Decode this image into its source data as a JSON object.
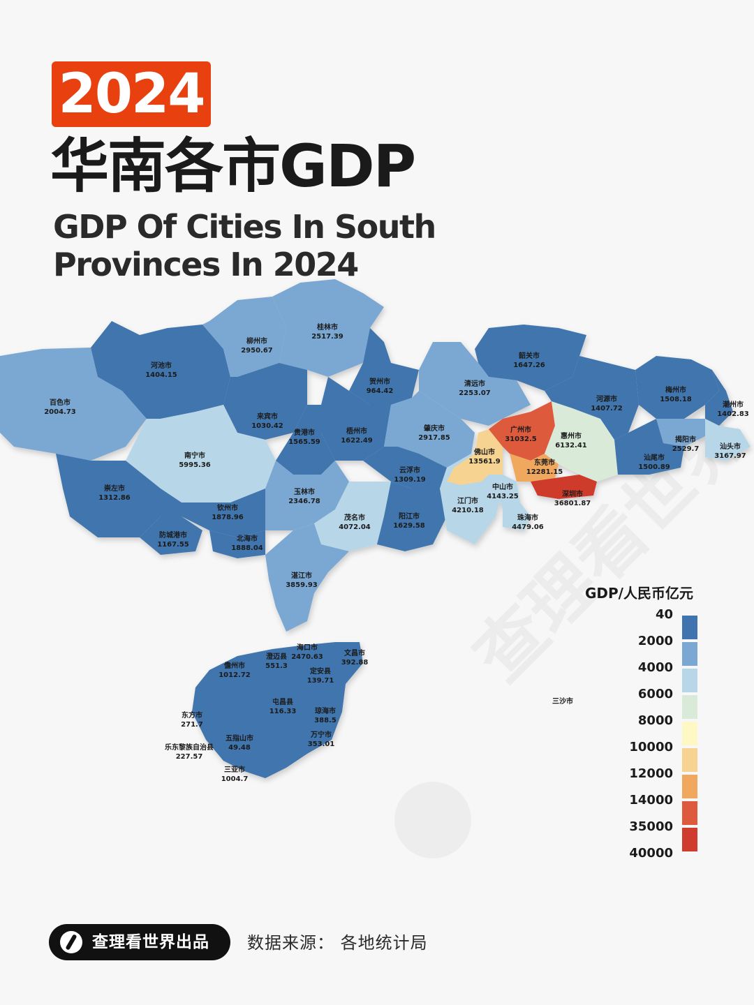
{
  "header": {
    "year": "2024",
    "title_cn": "华南各市GDP",
    "title_en_line1": "GDP Of Cities In South",
    "title_en_line2": "Provinces In 2024"
  },
  "legend": {
    "title": "GDP/人民币亿元",
    "items": [
      {
        "label": "40",
        "color": "#3f74ae"
      },
      {
        "label": "2000",
        "color": "#7aa8d3"
      },
      {
        "label": "4000",
        "color": "#b7d6e8"
      },
      {
        "label": "6000",
        "color": "#d9ead9"
      },
      {
        "label": "8000",
        "color": "#fdf8c4"
      },
      {
        "label": "10000",
        "color": "#f7d391"
      },
      {
        "label": "12000",
        "color": "#f0a85f"
      },
      {
        "label": "14000",
        "color": "#dd5a3c"
      },
      {
        "label": "35000",
        "color": "#cf3b2c"
      },
      {
        "label": "40000",
        "color": ""
      }
    ]
  },
  "map_cities": [
    {
      "name": "桂林市",
      "value": "2517.39"
    },
    {
      "name": "柳州市",
      "value": "2950.67"
    },
    {
      "name": "河池市",
      "value": "1404.15"
    },
    {
      "name": "百色市",
      "value": "2004.73"
    },
    {
      "name": "贺州市",
      "value": "964.42"
    },
    {
      "name": "来宾市",
      "value": "1030.42"
    },
    {
      "name": "贵港市",
      "value": "1565.59"
    },
    {
      "name": "梧州市",
      "value": "1622.49"
    },
    {
      "name": "南宁市",
      "value": "5995.36"
    },
    {
      "name": "崇左市",
      "value": "1312.86"
    },
    {
      "name": "玉林市",
      "value": "2346.78"
    },
    {
      "name": "钦州市",
      "value": "1878.96"
    },
    {
      "name": "防城港市",
      "value": "1167.55"
    },
    {
      "name": "北海市",
      "value": "1888.04"
    },
    {
      "name": "韶关市",
      "value": "1647.26"
    },
    {
      "name": "清远市",
      "value": "2253.07"
    },
    {
      "name": "肇庆市",
      "value": "2917.85"
    },
    {
      "name": "广州市",
      "value": "31032.5"
    },
    {
      "name": "佛山市",
      "value": "13561.9"
    },
    {
      "name": "云浮市",
      "value": "1309.19"
    },
    {
      "name": "河源市",
      "value": "1407.72"
    },
    {
      "name": "梅州市",
      "value": "1508.18"
    },
    {
      "name": "潮州市",
      "value": "1402.83"
    },
    {
      "name": "惠州市",
      "value": "6132.41"
    },
    {
      "name": "揭阳市",
      "value": "2529.7"
    },
    {
      "name": "汕头市",
      "value": "3167.97"
    },
    {
      "name": "汕尾市",
      "value": "1500.89"
    },
    {
      "name": "东莞市",
      "value": "12281.15"
    },
    {
      "name": "中山市",
      "value": "4143.25"
    },
    {
      "name": "深圳市",
      "value": "36801.87"
    },
    {
      "name": "江门市",
      "value": "4210.18"
    },
    {
      "name": "茂名市",
      "value": "4072.04"
    },
    {
      "name": "阳江市",
      "value": "1629.58"
    },
    {
      "name": "珠海市",
      "value": "4479.06"
    },
    {
      "name": "湛江市",
      "value": "3859.93"
    },
    {
      "name": "海口市",
      "value": "2470.63"
    },
    {
      "name": "澄迈县",
      "value": "551.3"
    },
    {
      "name": "文昌市",
      "value": "392.88"
    },
    {
      "name": "儋州市",
      "value": "1012.72"
    },
    {
      "name": "定安县",
      "value": "139.71"
    },
    {
      "name": "屯昌县",
      "value": "116.33"
    },
    {
      "name": "琼海市",
      "value": "388.5"
    },
    {
      "name": "东方市",
      "value": "271.7"
    },
    {
      "name": "五指山市",
      "value": "49.48"
    },
    {
      "name": "万宁市",
      "value": "353.01"
    },
    {
      "name": "乐东黎族自治县",
      "value": "227.57"
    },
    {
      "name": "三亚市",
      "value": "1004.7"
    },
    {
      "name": "三沙市",
      "value": ""
    }
  ],
  "watermark": "查理看世界",
  "footer": {
    "brand": "查理看世界出品",
    "source": "数据来源：  各地统计局"
  }
}
